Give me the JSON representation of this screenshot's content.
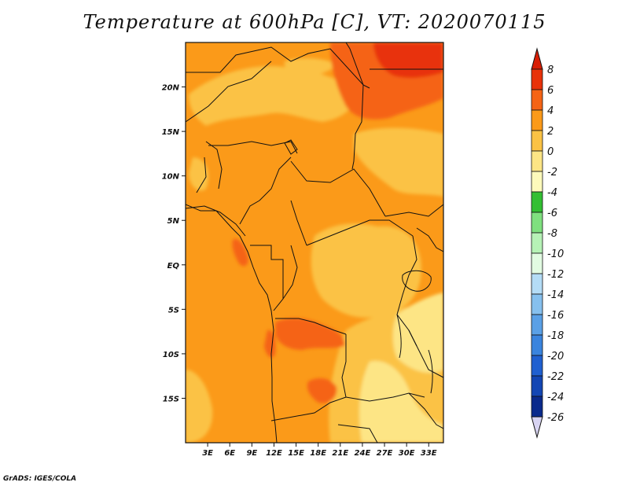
{
  "title": "Temperature at 600hPa [C], VT: 2020070115",
  "credit": "GrADS: IGES/COLA",
  "map": {
    "lon_range": [
      0,
      35
    ],
    "lat_range": [
      -20,
      25
    ],
    "lat_ticks": [
      "20N",
      "15N",
      "10N",
      "5N",
      "EQ",
      "5S",
      "10S",
      "15S"
    ],
    "lat_tick_values": [
      20,
      15,
      10,
      5,
      0,
      -5,
      -10,
      -15
    ],
    "lon_ticks": [
      "3E",
      "6E",
      "9E",
      "12E",
      "15E",
      "18E",
      "21E",
      "24E",
      "27E",
      "30E",
      "33E"
    ],
    "lon_tick_values": [
      3,
      6,
      9,
      12,
      15,
      18,
      21,
      24,
      27,
      30,
      33
    ]
  },
  "colorbar": {
    "labels": [
      "8",
      "6",
      "4",
      "2",
      "0",
      "-2",
      "-4",
      "-6",
      "-8",
      "-10",
      "-12",
      "-14",
      "-16",
      "-18",
      "-20",
      "-22",
      "-24",
      "-26"
    ],
    "colors": [
      "#e8320a",
      "#f56415",
      "#fb9a19",
      "#fbc245",
      "#fde585",
      "#fdfabb",
      "#33bf33",
      "#7fe07f",
      "#b6f2b6",
      "#e2fbe2",
      "#b4dcf6",
      "#86c0ee",
      "#5aa0e6",
      "#3a84de",
      "#2060d0",
      "#1346b4",
      "#0a2a8c",
      "#0a1060"
    ],
    "top_color": "#d81e05",
    "bottom_color": "#d8d4f2"
  }
}
